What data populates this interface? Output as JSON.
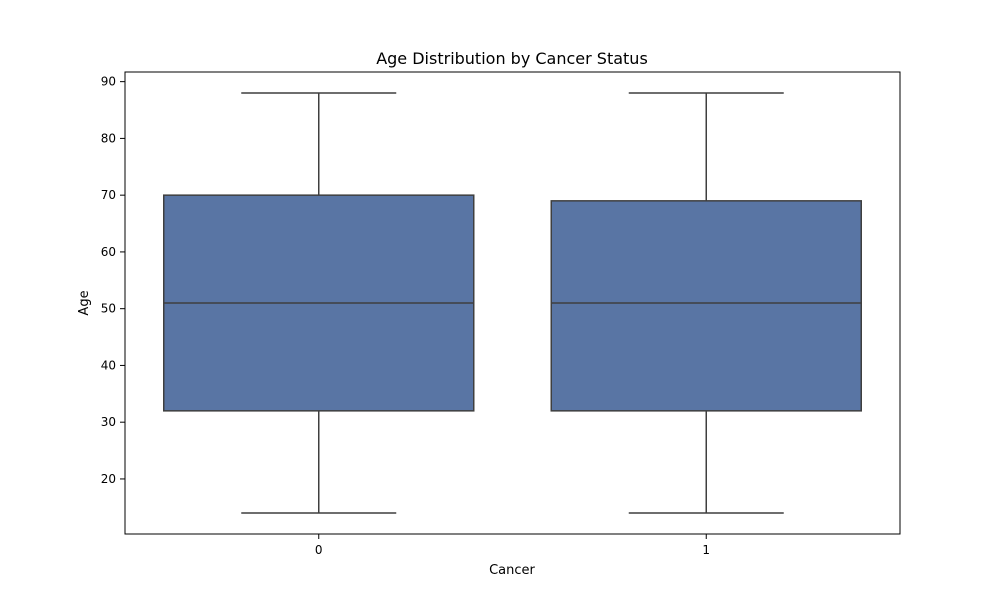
{
  "chart_data": {
    "type": "box",
    "title": "Age Distribution by Cancer Status",
    "xlabel": "Cancer",
    "ylabel": "Age",
    "categories": [
      "0",
      "1"
    ],
    "boxes": [
      {
        "category": "0",
        "min": 14,
        "q1": 32,
        "median": 51,
        "q3": 70,
        "max": 88
      },
      {
        "category": "1",
        "min": 14,
        "q1": 32,
        "median": 51,
        "q3": 69,
        "max": 88
      }
    ],
    "ylim": [
      10.3,
      91.7
    ],
    "yticks": [
      20,
      30,
      40,
      50,
      60,
      70,
      80,
      90
    ],
    "grid": false,
    "colors": {
      "box_fill": "#5975a4",
      "line": "#3f3f3f",
      "axis": "#000000"
    }
  }
}
